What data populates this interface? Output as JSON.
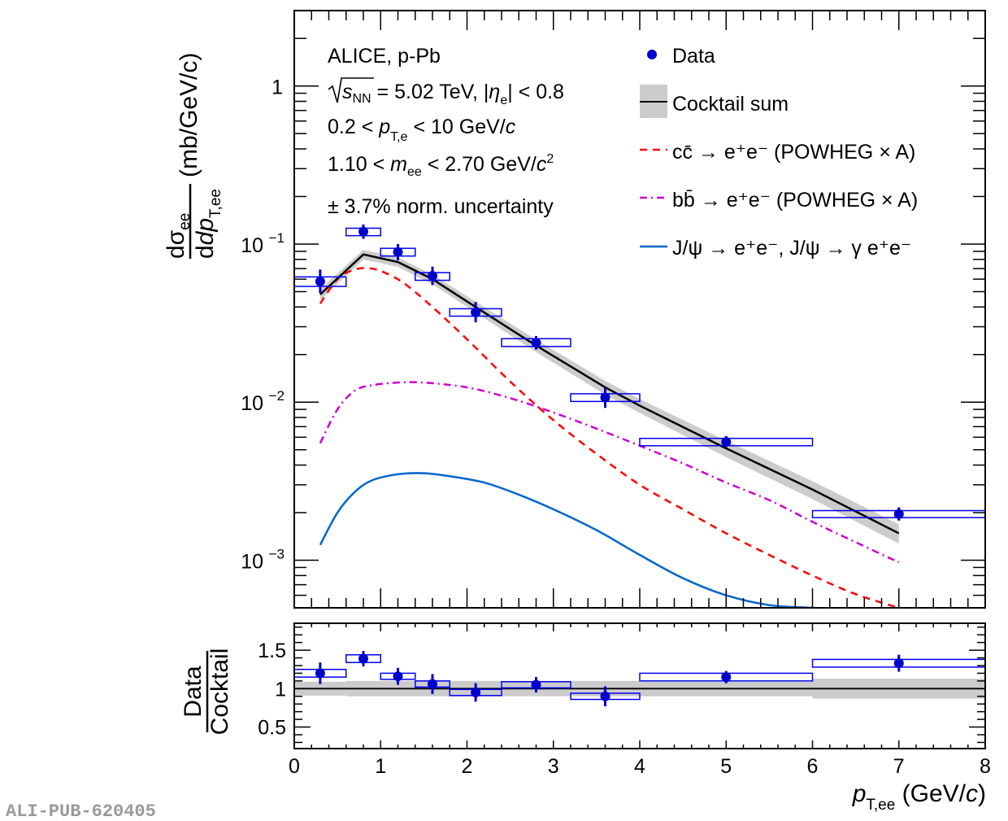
{
  "chart_data": [
    {
      "type": "scatter",
      "panel": "top",
      "yscale": "log",
      "xlim": [
        0,
        8
      ],
      "ylim": [
        0.0005,
        3
      ],
      "grid": false,
      "xlabel": "",
      "ylabel": {
        "num": "dσ",
        "num_sub": "ee",
        "den": "dp",
        "den_sub": "T,ee",
        "unit": "(mb/GeV/c)"
      },
      "ytick_labels": [
        {
          "value": 1,
          "label": "1",
          "exp": ""
        },
        {
          "value": 0.1,
          "label": "10",
          "exp": "−1"
        },
        {
          "value": 0.01,
          "label": "10",
          "exp": "−2"
        },
        {
          "value": 0.001,
          "label": "10",
          "exp": "−3"
        }
      ],
      "annotations": [
        "ALICE, p-Pb",
        "√s_NN = 5.02 TeV, |η_e| < 0.8",
        "0.2 < p_T,e < 10 GeV/c",
        "1.10 < m_ee < 2.70 GeV/c²",
        "± 3.7% norm. uncertainty"
      ],
      "annotation_parts": {
        "line1": "ALICE, p-Pb",
        "line2_a": "s",
        "line2_sub": "NN",
        "line2_b": " = 5.02 TeV, |",
        "line2_eta": "η",
        "line2_eta_sub": "e",
        "line2_c": "| < 0.8",
        "line3_a": "0.2 < ",
        "line3_p": "p",
        "line3_sub": "T,e",
        "line3_b": " < 10 GeV/",
        "line3_c": "c",
        "line4_a": "1.10 < ",
        "line4_m": "m",
        "line4_sub": "ee",
        "line4_b": " < 2.70 GeV/",
        "line4_c": "c",
        "line4_sup": "2",
        "line5": "± 3.7% norm. uncertainty"
      },
      "legend": {
        "placement": "top-right",
        "entries": [
          {
            "key": "data",
            "label": "Data",
            "style": "marker",
            "color": "#0000cc"
          },
          {
            "key": "cocktail",
            "label": "Cocktail sum",
            "style": "line+band",
            "color": "#000000",
            "band_color": "#cccccc"
          },
          {
            "key": "ccbar",
            "label": "cc̄ → e⁺e⁻ (POWHEG × A)",
            "style": "dashed",
            "color": "#ff0000"
          },
          {
            "key": "bbbar",
            "label": "bb̄ → e⁺e⁻ (POWHEG × A)",
            "style": "dash-dot",
            "color": "#cc00cc"
          },
          {
            "key": "jpsi",
            "label": "J/ψ → e⁺e⁻, J/ψ → γ e⁺e⁻",
            "style": "solid",
            "color": "#0066cc"
          }
        ]
      },
      "series": [
        {
          "name": "Data",
          "color": "#0000cc",
          "points": [
            {
              "x": 0.3,
              "xlo": 0.0,
              "xhi": 0.6,
              "y": 0.058,
              "stat_lo": 0.049,
              "stat_hi": 0.069,
              "sys_lo": 0.054,
              "sys_hi": 0.062
            },
            {
              "x": 0.8,
              "xlo": 0.6,
              "xhi": 1.0,
              "y": 0.12,
              "stat_lo": 0.108,
              "stat_hi": 0.133,
              "sys_lo": 0.113,
              "sys_hi": 0.126
            },
            {
              "x": 1.2,
              "xlo": 1.0,
              "xhi": 1.4,
              "y": 0.089,
              "stat_lo": 0.079,
              "stat_hi": 0.1,
              "sys_lo": 0.084,
              "sys_hi": 0.094
            },
            {
              "x": 1.6,
              "xlo": 1.4,
              "xhi": 1.8,
              "y": 0.063,
              "stat_lo": 0.055,
              "stat_hi": 0.072,
              "sys_lo": 0.059,
              "sys_hi": 0.066
            },
            {
              "x": 2.1,
              "xlo": 1.8,
              "xhi": 2.4,
              "y": 0.037,
              "stat_lo": 0.032,
              "stat_hi": 0.043,
              "sys_lo": 0.035,
              "sys_hi": 0.039
            },
            {
              "x": 2.8,
              "xlo": 2.4,
              "xhi": 3.2,
              "y": 0.0238,
              "stat_lo": 0.0215,
              "stat_hi": 0.0262,
              "sys_lo": 0.0225,
              "sys_hi": 0.0252
            },
            {
              "x": 3.6,
              "xlo": 3.2,
              "xhi": 4.0,
              "y": 0.0107,
              "stat_lo": 0.0092,
              "stat_hi": 0.0123,
              "sys_lo": 0.0101,
              "sys_hi": 0.0113
            },
            {
              "x": 5.0,
              "xlo": 4.0,
              "xhi": 6.0,
              "y": 0.0056,
              "stat_lo": 0.0052,
              "stat_hi": 0.0061,
              "sys_lo": 0.0053,
              "sys_hi": 0.0059
            },
            {
              "x": 7.0,
              "xlo": 6.0,
              "xhi": 8.0,
              "y": 0.00196,
              "stat_lo": 0.00178,
              "stat_hi": 0.00216,
              "sys_lo": 0.00186,
              "sys_hi": 0.00206
            }
          ]
        },
        {
          "name": "Cocktail sum",
          "color": "#000000",
          "band_color": "#cccccc",
          "x": [
            0.3,
            0.8,
            1.2,
            1.6,
            2.1,
            2.8,
            3.6,
            4.0,
            5.0,
            6.0,
            7.0
          ],
          "y": [
            0.048,
            0.086,
            0.077,
            0.06,
            0.04,
            0.0228,
            0.0124,
            0.0095,
            0.0051,
            0.0028,
            0.00148
          ],
          "band_rel": [
            0.08,
            0.07,
            0.07,
            0.07,
            0.08,
            0.09,
            0.1,
            0.1,
            0.12,
            0.13,
            0.14
          ]
        },
        {
          "name": "cc̄ → e⁺e⁻ (POWHEG × A)",
          "color": "#ff0000",
          "x": [
            0.3,
            0.5,
            0.7,
            0.9,
            1.1,
            1.3,
            1.6,
            2.0,
            2.5,
            3.0,
            3.5,
            4.0,
            4.5,
            5.0,
            5.5,
            6.0,
            6.5,
            7.0
          ],
          "y": [
            0.042,
            0.06,
            0.069,
            0.07,
            0.064,
            0.055,
            0.04,
            0.025,
            0.0135,
            0.0077,
            0.0047,
            0.003,
            0.0021,
            0.00148,
            0.00108,
            0.0008,
            0.00061,
            0.0005
          ]
        },
        {
          "name": "bb̄ → e⁺e⁻ (POWHEG × A)",
          "color": "#cc00cc",
          "x": [
            0.3,
            0.5,
            0.7,
            0.9,
            1.2,
            1.5,
            2.0,
            2.5,
            3.0,
            3.5,
            4.0,
            4.5,
            5.0,
            5.5,
            6.0,
            6.5,
            7.0
          ],
          "y": [
            0.0055,
            0.009,
            0.0118,
            0.0128,
            0.0133,
            0.0133,
            0.0124,
            0.0106,
            0.0086,
            0.0068,
            0.0053,
            0.0041,
            0.0031,
            0.0024,
            0.00175,
            0.0013,
            0.00097
          ]
        },
        {
          "name": "J/ψ → e⁺e⁻, J/ψ → γ e⁺e⁻",
          "color": "#0066cc",
          "x": [
            0.3,
            0.5,
            0.7,
            0.9,
            1.2,
            1.5,
            1.8,
            2.2,
            2.6,
            3.0,
            3.5,
            4.0,
            4.5,
            5.0,
            5.5,
            6.0,
            6.3
          ],
          "y": [
            0.00125,
            0.002,
            0.0027,
            0.0032,
            0.0035,
            0.00355,
            0.0034,
            0.0031,
            0.0026,
            0.0021,
            0.00155,
            0.00108,
            0.00077,
            0.0006,
            0.00052,
            0.0005,
            0.00049
          ]
        }
      ]
    },
    {
      "type": "scatter",
      "panel": "bottom",
      "xlim": [
        0,
        8
      ],
      "ylim": [
        0.22,
        1.85
      ],
      "grid": false,
      "xlabel": {
        "p": "p",
        "sub": "T,ee",
        "rest": " (GeV/",
        "c": "c",
        "close": ")"
      },
      "ylabel": {
        "num": "Data",
        "den": "Cocktail"
      },
      "xtick_labels": [
        "0",
        "1",
        "2",
        "3",
        "4",
        "5",
        "6",
        "7",
        "8"
      ],
      "ytick_labels": [
        "0.5",
        "1",
        "1.5"
      ],
      "reference_line": 1.0,
      "band": [
        {
          "xlo": 0.0,
          "xhi": 0.6,
          "lo": 0.91,
          "hi": 1.09
        },
        {
          "xlo": 0.6,
          "xhi": 4.0,
          "lo": 0.9,
          "hi": 1.1
        },
        {
          "xlo": 4.0,
          "xhi": 6.0,
          "lo": 0.9,
          "hi": 1.09
        },
        {
          "xlo": 6.0,
          "xhi": 8.0,
          "lo": 0.87,
          "hi": 1.13
        }
      ],
      "series": [
        {
          "name": "Data / Cocktail",
          "color": "#0000cc",
          "points": [
            {
              "x": 0.3,
              "xlo": 0.0,
              "xhi": 0.6,
              "y": 1.2,
              "stat": 0.14,
              "sys": 0.05
            },
            {
              "x": 0.8,
              "xlo": 0.6,
              "xhi": 1.0,
              "y": 1.39,
              "stat": 0.1,
              "sys": 0.05
            },
            {
              "x": 1.2,
              "xlo": 1.0,
              "xhi": 1.4,
              "y": 1.16,
              "stat": 0.11,
              "sys": 0.04
            },
            {
              "x": 1.6,
              "xlo": 1.4,
              "xhi": 1.8,
              "y": 1.06,
              "stat": 0.13,
              "sys": 0.04
            },
            {
              "x": 2.1,
              "xlo": 1.8,
              "xhi": 2.4,
              "y": 0.95,
              "stat": 0.12,
              "sys": 0.04
            },
            {
              "x": 2.8,
              "xlo": 2.4,
              "xhi": 3.2,
              "y": 1.05,
              "stat": 0.1,
              "sys": 0.04
            },
            {
              "x": 3.6,
              "xlo": 3.2,
              "xhi": 4.0,
              "y": 0.9,
              "stat": 0.13,
              "sys": 0.04
            },
            {
              "x": 5.0,
              "xlo": 4.0,
              "xhi": 6.0,
              "y": 1.15,
              "stat": 0.08,
              "sys": 0.05
            },
            {
              "x": 7.0,
              "xlo": 6.0,
              "xhi": 8.0,
              "y": 1.33,
              "stat": 0.11,
              "sys": 0.05
            }
          ]
        }
      ]
    }
  ],
  "watermark": "ALI-PUB-620405"
}
